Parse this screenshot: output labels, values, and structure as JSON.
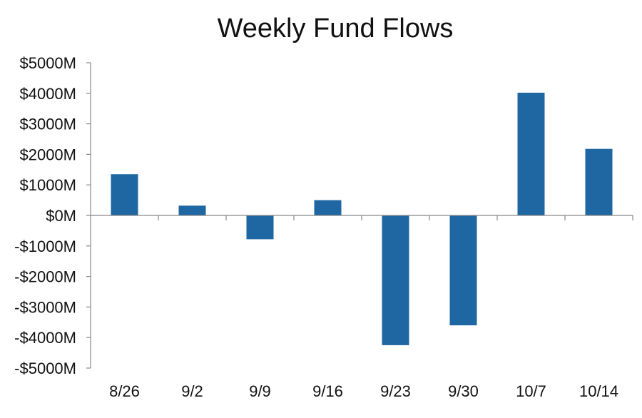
{
  "chart_data": {
    "type": "bar",
    "title": "Weekly Fund Flows",
    "xlabel": "",
    "ylabel": "",
    "categories": [
      "8/26",
      "9/2",
      "9/9",
      "9/16",
      "9/23",
      "9/30",
      "10/7",
      "10/14"
    ],
    "series": [
      {
        "values": [
          1350,
          320,
          -780,
          500,
          -4250,
          -3600,
          4020,
          2180
        ]
      }
    ],
    "ylim": [
      -5000,
      5000
    ],
    "yticks": [
      5000,
      4000,
      3000,
      2000,
      1000,
      0,
      -1000,
      -2000,
      -3000,
      -4000,
      -5000
    ],
    "ytick_labels": [
      "$5000M",
      "$4000M",
      "$3000M",
      "$2000M",
      "$1000M",
      "$0M",
      "-$1000M",
      "-$2000M",
      "-$3000M",
      "-$4000M",
      "-$5000M"
    ],
    "bar_color": "#1f67a3",
    "axis_color": "#888888",
    "grid": false,
    "legend": "none"
  }
}
